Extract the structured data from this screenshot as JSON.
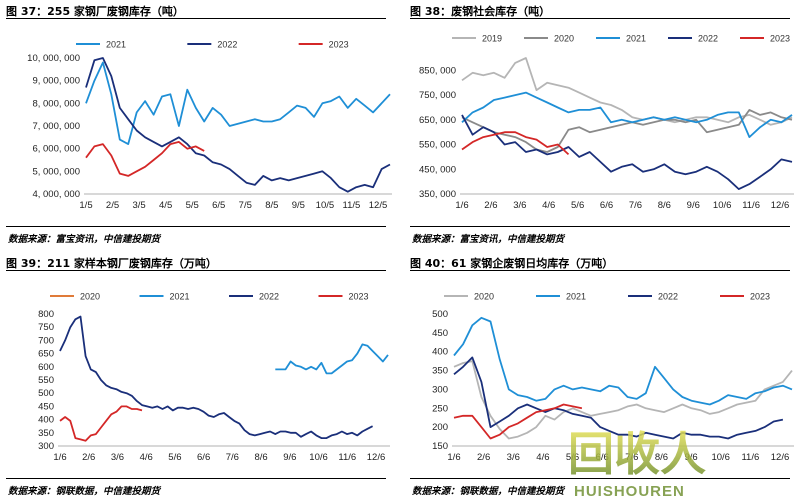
{
  "panels": [
    {
      "title": "图 37：255 家钢厂废钢库存（吨）",
      "source": "数据来源：富宝资讯，中信建投期货"
    },
    {
      "title": "图 38：废钢社会库存（吨）",
      "source": "数据来源：富宝资讯，中信建投期货"
    },
    {
      "title": "图 39：211 家样本钢厂废钢库存（万吨）",
      "source": "数据来源：钢联数据，中信建投期货"
    },
    {
      "title": "图 40：61 家钢企废钢日均库存（万吨）",
      "source": "数据来源：钢联数据，中信建投期货"
    }
  ],
  "chart_data": [
    {
      "type": "line",
      "x_ticks": [
        "1/5",
        "2/5",
        "3/5",
        "4/5",
        "5/5",
        "6/5",
        "7/5",
        "8/5",
        "9/5",
        "10/5",
        "11/5",
        "12/5"
      ],
      "y_ticks": [
        "4, 000, 000",
        "5, 000, 000",
        "6, 000, 000",
        "7, 000, 000",
        "8, 000, 000",
        "9, 000, 000",
        "10, 000, 000"
      ],
      "ylim": [
        4000000,
        10000000
      ],
      "series": [
        {
          "name": "2021",
          "color": "#1f8fd6",
          "values": [
            8000000,
            9000000,
            9800000,
            8400000,
            6400000,
            6200000,
            7600000,
            8100000,
            7500000,
            8300000,
            8400000,
            7000000,
            8600000,
            7800000,
            7200000,
            7800000,
            7500000,
            7000000,
            7100000,
            7200000,
            7300000,
            7200000,
            7200000,
            7300000,
            7600000,
            7900000,
            7800000,
            7400000,
            8000000,
            8100000,
            8300000,
            7800000,
            8200000,
            7900000,
            7600000,
            8000000,
            8400000
          ]
        },
        {
          "name": "2022",
          "color": "#1a2f7a",
          "values": [
            8700000,
            9900000,
            10000000,
            9200000,
            7800000,
            7300000,
            6800000,
            6500000,
            6300000,
            6100000,
            6300000,
            6500000,
            6200000,
            5800000,
            5700000,
            5400000,
            5300000,
            5100000,
            4800000,
            4500000,
            4400000,
            4800000,
            4600000,
            4700000,
            4600000,
            4700000,
            4800000,
            4900000,
            5000000,
            4700000,
            4300000,
            4100000,
            4300000,
            4400000,
            4300000,
            5100000,
            5300000
          ]
        },
        {
          "name": "2023",
          "color": "#d42727",
          "values": [
            5600000,
            6100000,
            6200000,
            5700000,
            4900000,
            4800000,
            5000000,
            5200000,
            5500000,
            5800000,
            6200000,
            6300000,
            6000000,
            6100000,
            5900000
          ]
        }
      ]
    },
    {
      "type": "line",
      "x_ticks": [
        "1/6",
        "2/6",
        "3/6",
        "4/6",
        "5/6",
        "6/6",
        "7/6",
        "8/6",
        "9/6",
        "10/6",
        "11/6",
        "12/6"
      ],
      "y_ticks": [
        "350, 000",
        "450, 000",
        "550, 000",
        "650, 000",
        "750, 000",
        "850, 000"
      ],
      "ylim": [
        350000,
        900000
      ],
      "series": [
        {
          "name": "2019",
          "color": "#b5b5b5",
          "values": [
            810000,
            840000,
            830000,
            840000,
            820000,
            880000,
            900000,
            770000,
            800000,
            790000,
            780000,
            760000,
            740000,
            720000,
            710000,
            690000,
            660000,
            650000,
            660000,
            650000,
            640000,
            650000,
            660000,
            660000,
            650000,
            640000,
            660000,
            670000,
            650000,
            630000,
            640000,
            660000
          ]
        },
        {
          "name": "2020",
          "color": "#8a8a8a",
          "values": [
            660000,
            640000,
            620000,
            600000,
            590000,
            580000,
            560000,
            530000,
            520000,
            540000,
            610000,
            620000,
            600000,
            610000,
            620000,
            630000,
            640000,
            630000,
            640000,
            650000,
            650000,
            640000,
            650000,
            600000,
            610000,
            620000,
            630000,
            690000,
            670000,
            680000,
            660000,
            650000
          ]
        },
        {
          "name": "2021",
          "color": "#1f8fd6",
          "values": [
            640000,
            680000,
            700000,
            730000,
            740000,
            750000,
            760000,
            740000,
            720000,
            700000,
            680000,
            690000,
            690000,
            700000,
            640000,
            650000,
            640000,
            650000,
            660000,
            650000,
            660000,
            650000,
            640000,
            650000,
            670000,
            680000,
            680000,
            580000,
            620000,
            650000,
            640000,
            670000
          ]
        },
        {
          "name": "2022",
          "color": "#1a2f7a",
          "values": [
            670000,
            590000,
            620000,
            600000,
            550000,
            560000,
            520000,
            530000,
            510000,
            520000,
            540000,
            500000,
            520000,
            480000,
            440000,
            460000,
            470000,
            440000,
            450000,
            470000,
            440000,
            430000,
            440000,
            460000,
            440000,
            410000,
            370000,
            390000,
            420000,
            450000,
            490000,
            480000
          ]
        },
        {
          "name": "2023",
          "color": "#d42727",
          "values": [
            530000,
            560000,
            580000,
            590000,
            600000,
            600000,
            580000,
            570000,
            540000,
            550000,
            510000
          ]
        }
      ]
    },
    {
      "type": "line",
      "x_ticks": [
        "1/6",
        "2/6",
        "3/6",
        "4/6",
        "5/6",
        "6/6",
        "7/6",
        "8/6",
        "9/6",
        "10/6",
        "11/6",
        "12/6"
      ],
      "y_ticks": [
        "300",
        "350",
        "400",
        "450",
        "500",
        "550",
        "600",
        "650",
        "700",
        "750",
        "800"
      ],
      "ylim": [
        300,
        800
      ],
      "series": [
        {
          "name": "2020",
          "color": "#e07b39",
          "values": []
        },
        {
          "name": "2021",
          "color": "#1f8fd6",
          "values": [
            null,
            null,
            null,
            null,
            null,
            null,
            null,
            null,
            null,
            null,
            null,
            null,
            null,
            null,
            null,
            null,
            null,
            null,
            null,
            null,
            null,
            null,
            null,
            null,
            null,
            null,
            null,
            null,
            null,
            null,
            null,
            null,
            null,
            null,
            null,
            null,
            null,
            null,
            null,
            null,
            null,
            null,
            590,
            590,
            590,
            620,
            605,
            600,
            590,
            600,
            590,
            615,
            575,
            575,
            590,
            605,
            620,
            625,
            650,
            685,
            680,
            660,
            640,
            620,
            645
          ]
        },
        {
          "name": "2022",
          "color": "#1a2f7a",
          "values": [
            660,
            700,
            750,
            780,
            790,
            640,
            590,
            580,
            550,
            530,
            520,
            515,
            505,
            500,
            490,
            470,
            455,
            450,
            445,
            450,
            440,
            450,
            435,
            445,
            445,
            440,
            445,
            440,
            430,
            415,
            410,
            420,
            425,
            410,
            395,
            385,
            360,
            345,
            340,
            345,
            350,
            355,
            345,
            355,
            355,
            350,
            350,
            335,
            345,
            355,
            340,
            330,
            330,
            340,
            345,
            355,
            345,
            350,
            340,
            355,
            365,
            375
          ]
        },
        {
          "name": "2023",
          "color": "#d42727",
          "values": [
            395,
            410,
            395,
            330,
            325,
            320,
            340,
            345,
            370,
            395,
            420,
            430,
            450,
            450,
            440,
            440,
            435
          ]
        }
      ]
    },
    {
      "type": "line",
      "x_ticks": [
        "1/6",
        "2/6",
        "3/6",
        "4/6",
        "5/6",
        "6/6",
        "7/6",
        "8/6",
        "9/6",
        "10/6",
        "11/6",
        "12/6"
      ],
      "y_ticks": [
        "150",
        "200",
        "250",
        "300",
        "350",
        "400",
        "450",
        "500"
      ],
      "ylim": [
        150,
        500
      ],
      "series": [
        {
          "name": "2020",
          "color": "#b5b5b5",
          "values": [
            360,
            370,
            375,
            280,
            230,
            195,
            170,
            175,
            185,
            200,
            230,
            220,
            240,
            250,
            240,
            230,
            235,
            240,
            245,
            255,
            260,
            250,
            245,
            240,
            250,
            260,
            250,
            245,
            235,
            240,
            250,
            260,
            265,
            270,
            300,
            310,
            320,
            350
          ]
        },
        {
          "name": "2021",
          "color": "#1f8fd6",
          "values": [
            390,
            420,
            470,
            490,
            480,
            380,
            300,
            285,
            280,
            270,
            275,
            300,
            310,
            300,
            305,
            300,
            295,
            310,
            305,
            280,
            275,
            290,
            360,
            330,
            300,
            280,
            270,
            265,
            260,
            270,
            285,
            280,
            275,
            290,
            295,
            305,
            310,
            300
          ]
        },
        {
          "name": "2022",
          "color": "#1a2f7a",
          "values": [
            340,
            360,
            385,
            320,
            200,
            215,
            230,
            250,
            260,
            250,
            240,
            250,
            245,
            235,
            230,
            225,
            200,
            190,
            180,
            180,
            175,
            185,
            180,
            175,
            170,
            185,
            180,
            180,
            175,
            175,
            170,
            180,
            185,
            190,
            200,
            215,
            220
          ]
        },
        {
          "name": "2023",
          "color": "#d42727",
          "values": [
            225,
            230,
            230,
            200,
            170,
            180,
            200,
            210,
            225,
            240,
            245,
            250,
            260,
            255,
            250
          ]
        }
      ]
    }
  ],
  "watermark": {
    "text": "回收人",
    "subtext": "HUISHOUREN"
  }
}
